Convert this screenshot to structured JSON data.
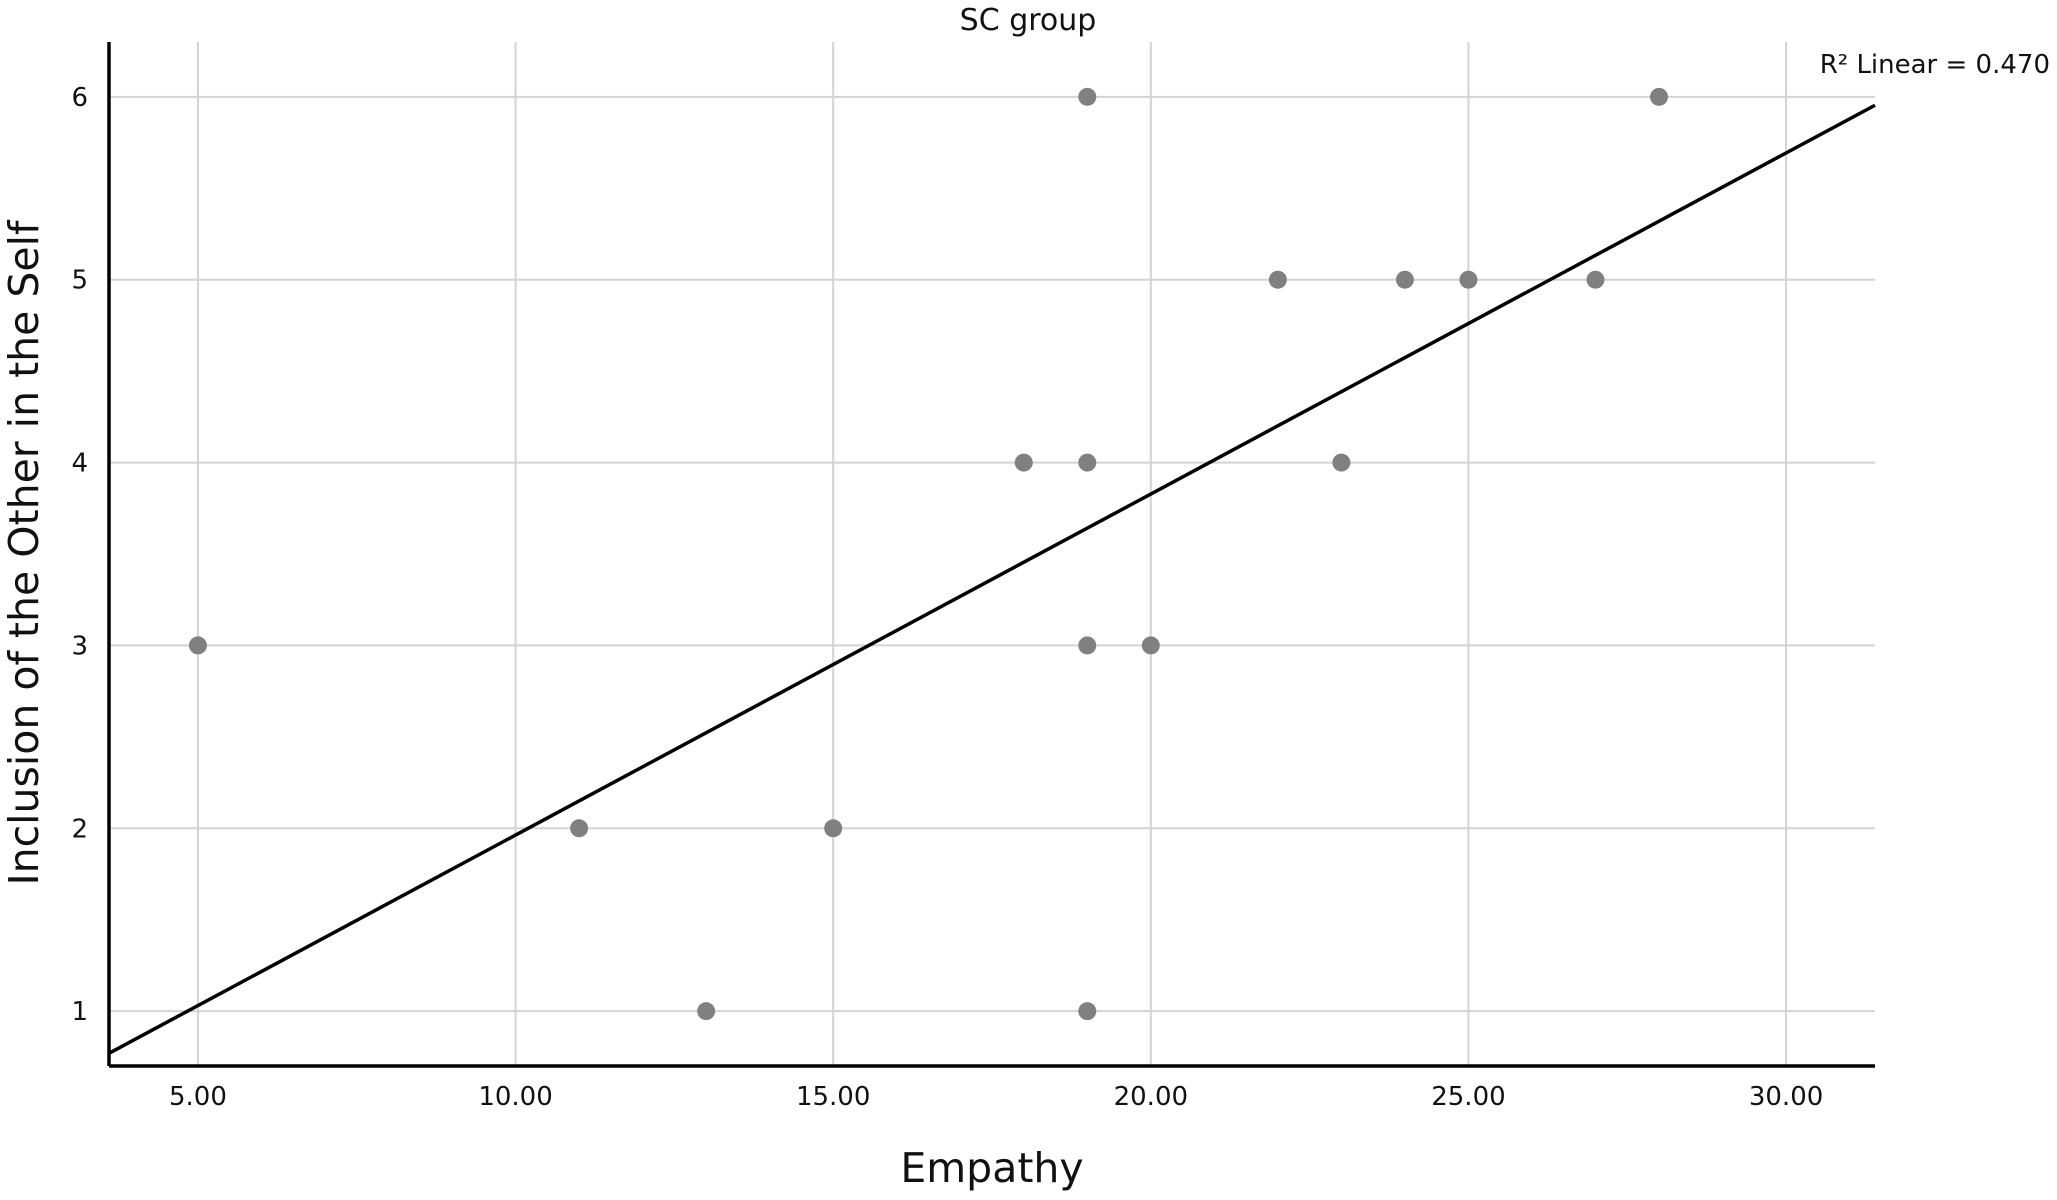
{
  "chart_data": {
    "type": "scatter",
    "title": "SC group",
    "xlabel": "Empathy",
    "ylabel": "Inclusion of the Other in the Self",
    "xlim": [
      3.6,
      31.4
    ],
    "ylim": [
      0.7,
      6.3
    ],
    "x_ticks": [
      5,
      10,
      15,
      20,
      25,
      30
    ],
    "x_tick_labels": [
      "5.00",
      "10.00",
      "15.00",
      "20.00",
      "25.00",
      "30.00"
    ],
    "y_ticks": [
      1,
      2,
      3,
      4,
      5,
      6
    ],
    "y_tick_labels": [
      "1",
      "2",
      "3",
      "4",
      "5",
      "6"
    ],
    "grid": true,
    "point_color": "#808080",
    "points": [
      {
        "x": 19,
        "y": 6
      },
      {
        "x": 28,
        "y": 6
      },
      {
        "x": 22,
        "y": 5
      },
      {
        "x": 24,
        "y": 5
      },
      {
        "x": 25,
        "y": 5
      },
      {
        "x": 27,
        "y": 5
      },
      {
        "x": 18,
        "y": 4
      },
      {
        "x": 19,
        "y": 4
      },
      {
        "x": 23,
        "y": 4
      },
      {
        "x": 5,
        "y": 3
      },
      {
        "x": 19,
        "y": 3
      },
      {
        "x": 20,
        "y": 3
      },
      {
        "x": 11,
        "y": 2
      },
      {
        "x": 15,
        "y": 2
      },
      {
        "x": 13,
        "y": 1
      },
      {
        "x": 19,
        "y": 1
      }
    ],
    "fit_line": {
      "type": "linear",
      "slope": 0.1865,
      "intercept": 0.098,
      "label": "R² Linear = 0.470"
    }
  }
}
